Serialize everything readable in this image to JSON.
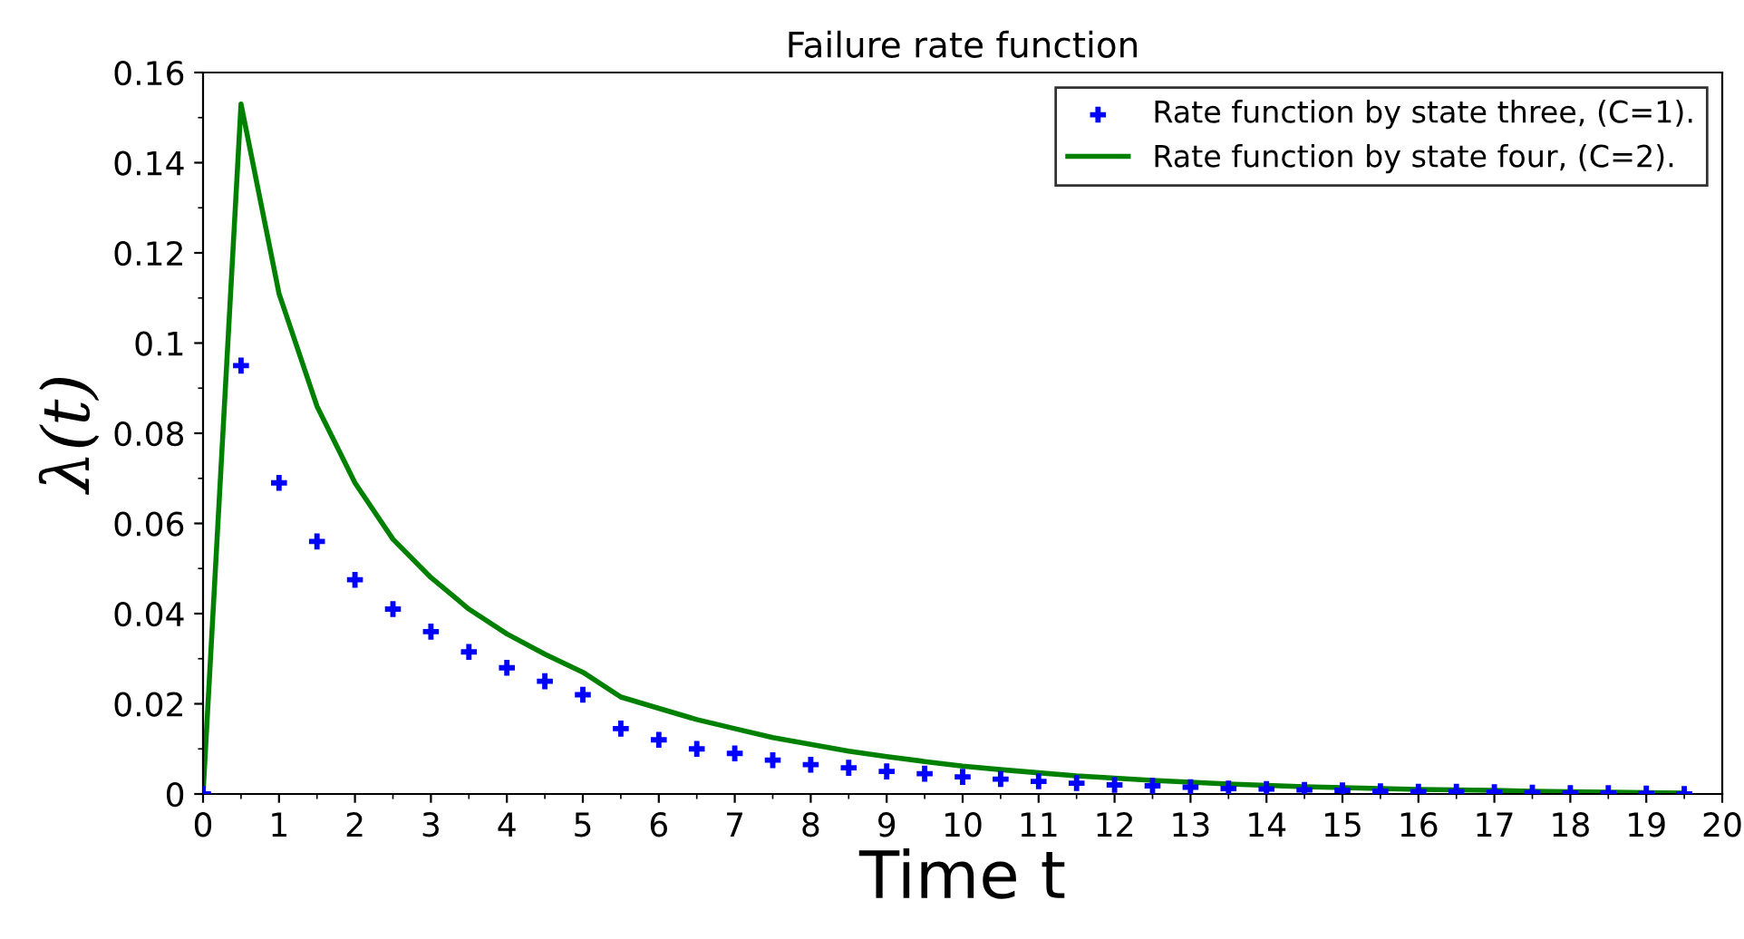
{
  "chart_data": {
    "type": "scatter",
    "title": "Failure rate function",
    "xlabel": "Time t",
    "ylabel": "λ(t)",
    "x": [
      0,
      0.5,
      1,
      1.5,
      2,
      2.5,
      3,
      3.5,
      4,
      4.5,
      5,
      5.5,
      6,
      6.5,
      7,
      7.5,
      8,
      8.5,
      9,
      9.5,
      10,
      10.5,
      11,
      11.5,
      12,
      12.5,
      13,
      13.5,
      14,
      14.5,
      15,
      15.5,
      16,
      16.5,
      17,
      17.5,
      18,
      18.5,
      19,
      19.5
    ],
    "series": [
      {
        "name": "Rate function by state three, (C=1).",
        "marker": "cross",
        "color": "#0000ff",
        "values": [
          0,
          0.095,
          0.069,
          0.056,
          0.0475,
          0.041,
          0.036,
          0.0315,
          0.028,
          0.025,
          0.022,
          0.0145,
          0.012,
          0.01,
          0.009,
          0.0075,
          0.0065,
          0.0058,
          0.005,
          0.0045,
          0.0038,
          0.0033,
          0.0028,
          0.0024,
          0.002,
          0.0018,
          0.0015,
          0.0012,
          0.0011,
          0.0009,
          0.0008,
          0.0006,
          0.0005,
          0.0005,
          0.0004,
          0.0003,
          0.0002,
          0.0002,
          0.0001,
          0
        ]
      },
      {
        "name": "Rate function by state four, (C=2).",
        "type": "line",
        "marker": "none",
        "line_style": "solid",
        "color": "#008000",
        "values": [
          0,
          0.153,
          0.111,
          0.086,
          0.069,
          0.0565,
          0.048,
          0.041,
          0.0355,
          0.031,
          0.027,
          0.0215,
          0.019,
          0.0165,
          0.0145,
          0.0125,
          0.011,
          0.0095,
          0.0083,
          0.0072,
          0.0062,
          0.0054,
          0.0047,
          0.004,
          0.0035,
          0.003,
          0.0026,
          0.0022,
          0.0019,
          0.0016,
          0.0014,
          0.0012,
          0.001,
          0.0009,
          0.0008,
          0.0006,
          0.0005,
          0.0004,
          0.0003,
          0.0002
        ]
      }
    ],
    "xlim": [
      0,
      20
    ],
    "xticks": [
      0,
      1,
      2,
      3,
      4,
      5,
      6,
      7,
      8,
      9,
      10,
      11,
      12,
      13,
      14,
      15,
      16,
      17,
      18,
      19,
      20
    ],
    "ylim": [
      0,
      0.16
    ],
    "yticks": [
      0,
      0.02,
      0.04,
      0.06,
      0.08,
      0.1,
      0.12,
      0.14,
      0.16
    ],
    "grid": false,
    "legend": "top right"
  }
}
